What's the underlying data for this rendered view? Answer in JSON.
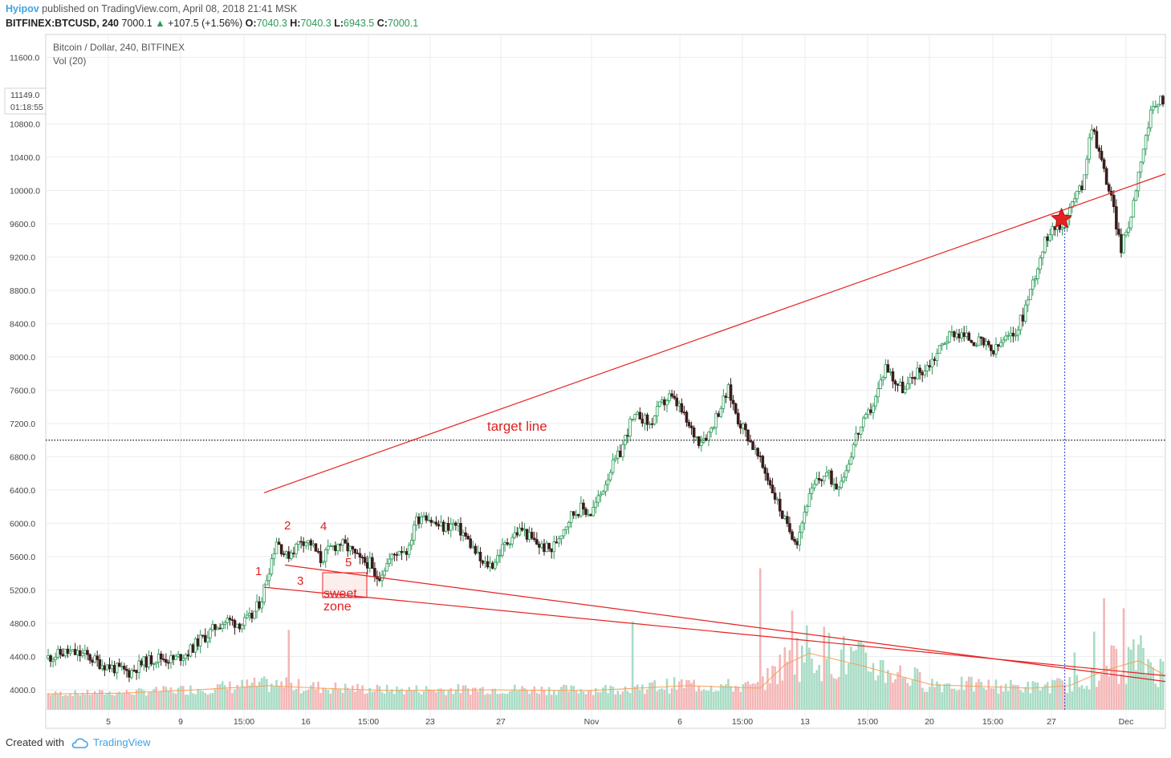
{
  "header": {
    "author": "Hyipov",
    "published": " published on TradingView.com, April 08, 2018 21:41 MSK",
    "symbol": "BITFINEX:BTCUSD, 240",
    "price": "7000.1",
    "change": "+107.5 (+1.56%)",
    "o_label": "O:",
    "o_val": "7040.3",
    "h_label": "H:",
    "h_val": "7040.3",
    "l_label": "L:",
    "l_val": "6943.5",
    "c_label": "C:",
    "c_val": "7000.1"
  },
  "legend": {
    "title": "Bitcoin / Dollar, 240, BITFINEX",
    "indicator": "Vol (20)"
  },
  "price_badge": {
    "value": "11149.0",
    "countdown": "01:18:55"
  },
  "footer": {
    "created": "Created with",
    "brand": "TradingView"
  },
  "colors": {
    "up": "#2b9a57",
    "down": "#3a1d1d",
    "vol_up": "#a8dcc4",
    "vol_down": "#f4b6b6",
    "trend": "#e52222",
    "vol_ma": "#f4a259",
    "link": "#3fa3e2"
  },
  "chart_data": {
    "type": "candlestick",
    "interval": "240",
    "ylim": [
      3750,
      11850
    ],
    "y_ticks": [
      4000,
      4400,
      4800,
      5200,
      5600,
      6000,
      6400,
      6800,
      7200,
      7600,
      8000,
      8400,
      8800,
      9200,
      9600,
      10000,
      10400,
      10800,
      11600
    ],
    "y_tick_labels": [
      "4000.0",
      "4400.0",
      "4800.0",
      "5200.0",
      "5600.0",
      "6000.0",
      "6400.0",
      "6800.0",
      "7200.0",
      "7600.0",
      "8000.0",
      "8400.0",
      "8800.0",
      "9200.0",
      "9600.0",
      "10000.0",
      "10400.0",
      "10800.0",
      "11600.0"
    ],
    "x_ticks": [
      "5",
      "9",
      "15:00",
      "16",
      "15:00",
      "23",
      "27",
      "Nov",
      "6",
      "15:00",
      "13",
      "15:00",
      "20",
      "15:00",
      "27",
      "Dec"
    ],
    "price_path": [
      [
        0,
        4380
      ],
      [
        8,
        4450
      ],
      [
        16,
        4420
      ],
      [
        22,
        4320
      ],
      [
        28,
        4260
      ],
      [
        34,
        4210
      ],
      [
        40,
        4330
      ],
      [
        46,
        4390
      ],
      [
        52,
        4360
      ],
      [
        58,
        4450
      ],
      [
        62,
        4580
      ],
      [
        66,
        4660
      ],
      [
        70,
        4780
      ],
      [
        74,
        4830
      ],
      [
        80,
        4790
      ],
      [
        84,
        4880
      ],
      [
        88,
        5100
      ],
      [
        90,
        5350
      ],
      [
        94,
        5800
      ],
      [
        98,
        5600
      ],
      [
        102,
        5720
      ],
      [
        104,
        5810
      ],
      [
        108,
        5760
      ],
      [
        112,
        5560
      ],
      [
        116,
        5700
      ],
      [
        120,
        5760
      ],
      [
        124,
        5680
      ],
      [
        128,
        5550
      ],
      [
        132,
        5520
      ],
      [
        134,
        5330
      ],
      [
        136,
        5380
      ],
      [
        140,
        5560
      ],
      [
        144,
        5690
      ],
      [
        148,
        5680
      ],
      [
        150,
        6000
      ],
      [
        154,
        6130
      ],
      [
        158,
        6000
      ],
      [
        162,
        5950
      ],
      [
        166,
        5990
      ],
      [
        170,
        5880
      ],
      [
        174,
        5700
      ],
      [
        178,
        5500
      ],
      [
        182,
        5510
      ],
      [
        186,
        5700
      ],
      [
        190,
        5850
      ],
      [
        194,
        5930
      ],
      [
        198,
        5800
      ],
      [
        202,
        5720
      ],
      [
        206,
        5680
      ],
      [
        210,
        5900
      ],
      [
        214,
        6100
      ],
      [
        218,
        6180
      ],
      [
        222,
        6120
      ],
      [
        226,
        6350
      ],
      [
        230,
        6650
      ],
      [
        234,
        6850
      ],
      [
        238,
        7200
      ],
      [
        242,
        7300
      ],
      [
        246,
        7180
      ],
      [
        250,
        7400
      ],
      [
        254,
        7520
      ],
      [
        258,
        7400
      ],
      [
        262,
        7150
      ],
      [
        266,
        7000
      ],
      [
        270,
        7080
      ],
      [
        274,
        7350
      ],
      [
        278,
        7600
      ],
      [
        282,
        7250
      ],
      [
        286,
        7050
      ],
      [
        290,
        6800
      ],
      [
        294,
        6550
      ],
      [
        298,
        6250
      ],
      [
        302,
        5950
      ],
      [
        306,
        5800
      ],
      [
        310,
        6250
      ],
      [
        314,
        6500
      ],
      [
        318,
        6600
      ],
      [
        322,
        6450
      ],
      [
        326,
        6650
      ],
      [
        330,
        7050
      ],
      [
        334,
        7250
      ],
      [
        338,
        7500
      ],
      [
        342,
        7900
      ],
      [
        346,
        7700
      ],
      [
        350,
        7600
      ],
      [
        354,
        7800
      ],
      [
        358,
        7850
      ],
      [
        362,
        8000
      ],
      [
        366,
        8200
      ],
      [
        370,
        8300
      ],
      [
        374,
        8250
      ],
      [
        378,
        8200
      ],
      [
        382,
        8150
      ],
      [
        386,
        8050
      ],
      [
        390,
        8200
      ],
      [
        394,
        8250
      ],
      [
        398,
        8500
      ],
      [
        402,
        8900
      ],
      [
        406,
        9300
      ],
      [
        410,
        9600
      ],
      [
        414,
        9550
      ],
      [
        418,
        9850
      ],
      [
        422,
        10050
      ],
      [
        426,
        10800
      ],
      [
        430,
        10350
      ],
      [
        434,
        9900
      ],
      [
        438,
        9300
      ],
      [
        442,
        9700
      ],
      [
        446,
        10400
      ],
      [
        450,
        10900
      ],
      [
        454,
        11100
      ]
    ],
    "volume_path": [
      [
        0,
        3950
      ],
      [
        30,
        3960
      ],
      [
        60,
        4000
      ],
      [
        90,
        4050
      ],
      [
        110,
        4020
      ],
      [
        140,
        3990
      ],
      [
        180,
        4000
      ],
      [
        220,
        3990
      ],
      [
        260,
        4050
      ],
      [
        290,
        4020
      ],
      [
        300,
        4300
      ],
      [
        310,
        4440
      ],
      [
        330,
        4300
      ],
      [
        360,
        4060
      ],
      [
        400,
        4020
      ],
      [
        416,
        4050
      ],
      [
        430,
        4230
      ],
      [
        444,
        4350
      ],
      [
        454,
        4190
      ]
    ],
    "volume_spikes": [
      [
        98,
        4720
      ],
      [
        238,
        4820
      ],
      [
        290,
        5460
      ],
      [
        303,
        4950
      ],
      [
        418,
        4450
      ],
      [
        426,
        4700
      ],
      [
        430,
        5100
      ],
      [
        438,
        4980
      ]
    ],
    "lines": [
      {
        "name": "target line",
        "price": 7000
      }
    ],
    "trendlines": [
      {
        "from": [
          0,
          5440
        ],
        "to": [
          100,
          10200
        ]
      },
      {
        "from": [
          0,
          5880
        ],
        "to": [
          100,
          4100
        ]
      },
      {
        "from": [
          0,
          5490
        ],
        "to": [
          100,
          4170
        ]
      }
    ],
    "marked_bar": {
      "x": 414,
      "price": 9600
    },
    "annotations": [
      "1",
      "2",
      "3",
      "4",
      "5",
      "sweet",
      "zone",
      "target line"
    ]
  }
}
